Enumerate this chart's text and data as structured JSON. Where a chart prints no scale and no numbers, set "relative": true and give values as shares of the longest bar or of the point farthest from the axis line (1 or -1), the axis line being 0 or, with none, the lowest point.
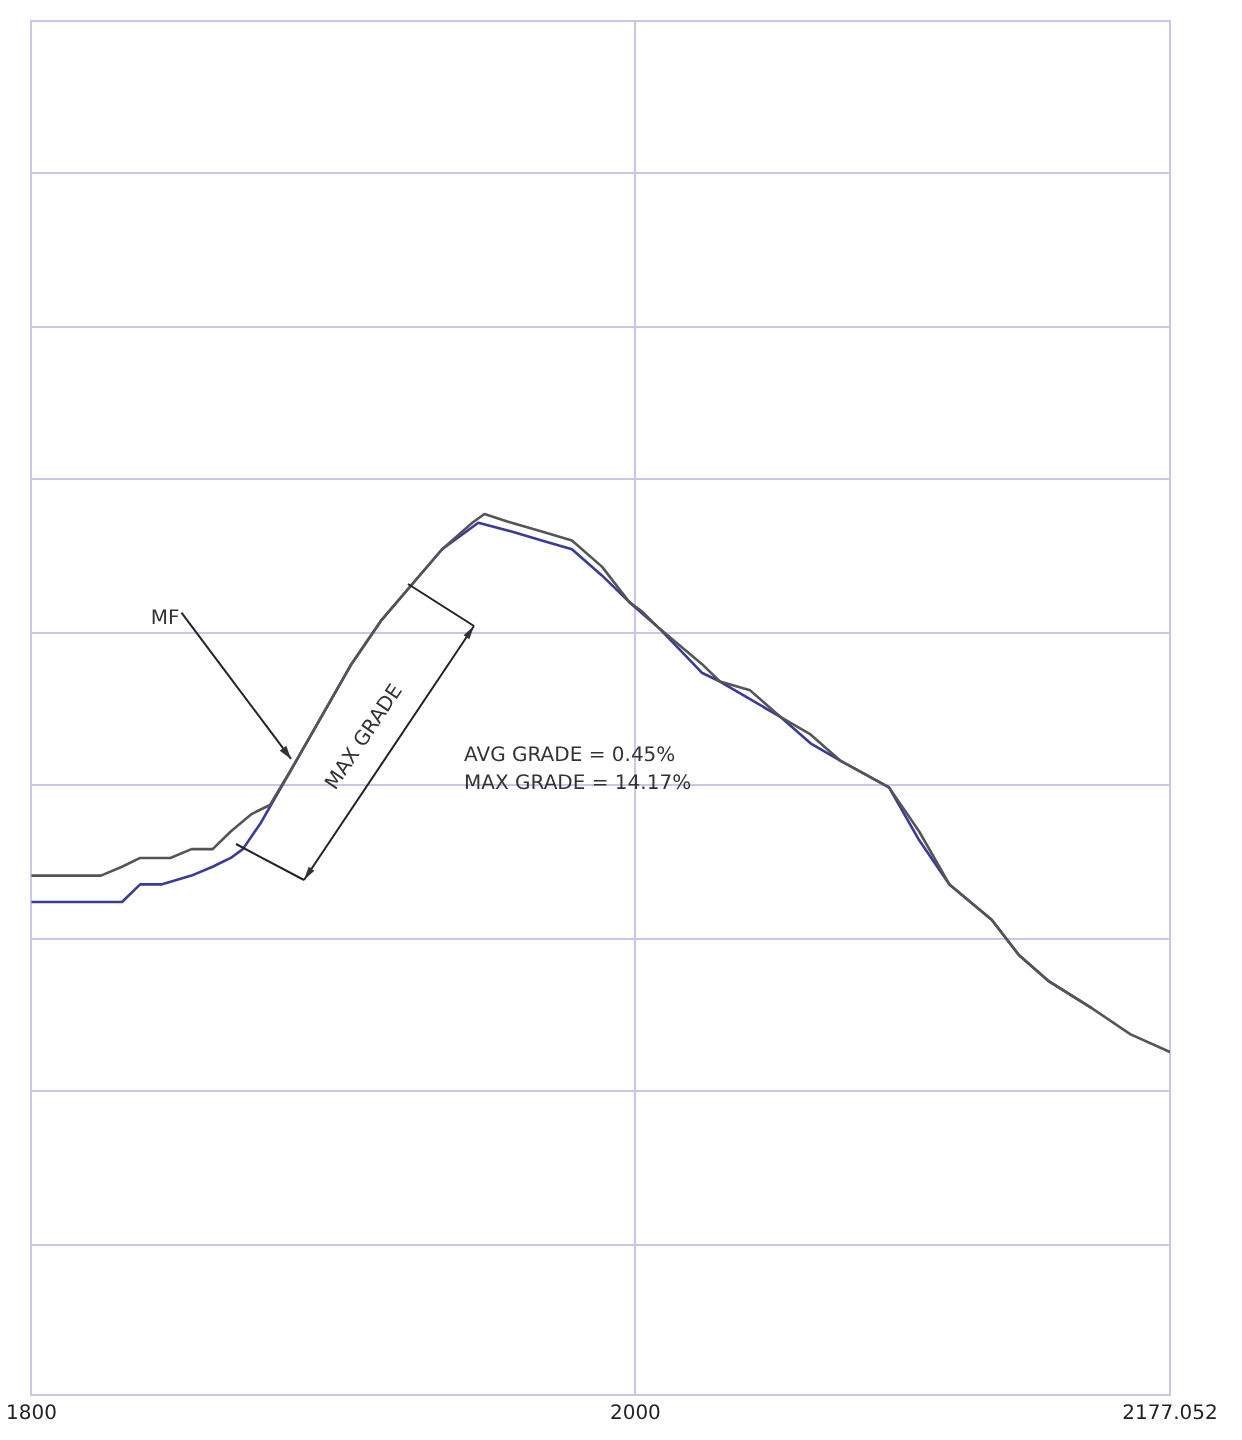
{
  "chart_data": {
    "type": "line",
    "relative": true,
    "grid": true,
    "marker": "none",
    "line_style": "solid",
    "xlim": [
      1800,
      2177.052
    ],
    "xticks": [
      1800,
      2000,
      2177.052
    ],
    "annotations": [
      "MF",
      "MAX GRADE",
      "AVG GRADE = 0.45%",
      "MAX GRADE = 14.17%"
    ],
    "series": [
      {
        "color": "#555555",
        "x": [
          1800,
          1813,
          1823,
          1830,
          1836,
          1846,
          1853,
          1860,
          1866,
          1873,
          1879,
          1886,
          1896,
          1906,
          1916,
          1926,
          1936,
          1946,
          1950,
          1959,
          1969,
          1979,
          1989,
          1998,
          2002,
          2008,
          2022,
          2028,
          2038,
          2048,
          2058,
          2068,
          2084,
          2094,
          2104,
          2118,
          2127,
          2137,
          2151,
          2164,
          2177.052
        ],
        "values": [
          0.59,
          0.59,
          0.59,
          0.6,
          0.61,
          0.61,
          0.62,
          0.62,
          0.64,
          0.66,
          0.67,
          0.71,
          0.77,
          0.83,
          0.88,
          0.92,
          0.96,
          0.99,
          1,
          0.99,
          0.98,
          0.97,
          0.94,
          0.9,
          0.89,
          0.87,
          0.83,
          0.81,
          0.8,
          0.77,
          0.75,
          0.72,
          0.69,
          0.64,
          0.58,
          0.54,
          0.5,
          0.47,
          0.44,
          0.41,
          0.39
        ]
      },
      {
        "color": "#3a3a9a",
        "x": [
          1800,
          1820,
          1830,
          1836,
          1843,
          1853,
          1860,
          1866,
          1870,
          1876,
          1886,
          1896,
          1906,
          1916,
          1926,
          1936,
          1948,
          1959,
          1969,
          1979,
          1989,
          1998,
          2008,
          2022,
          2028,
          2038,
          2048,
          2058,
          2068,
          2084,
          2094,
          2104,
          2118,
          2127,
          2137,
          2151
        ],
        "values": [
          0.56,
          0.56,
          0.56,
          0.58,
          0.58,
          0.59,
          0.6,
          0.61,
          0.62,
          0.65,
          0.71,
          0.77,
          0.83,
          0.88,
          0.92,
          0.96,
          0.99,
          0.98,
          0.97,
          0.96,
          0.93,
          0.9,
          0.87,
          0.82,
          0.81,
          0.79,
          0.77,
          0.74,
          0.72,
          0.69,
          0.63,
          0.58,
          0.54,
          0.5,
          0.47,
          0.44
        ]
      }
    ]
  }
}
